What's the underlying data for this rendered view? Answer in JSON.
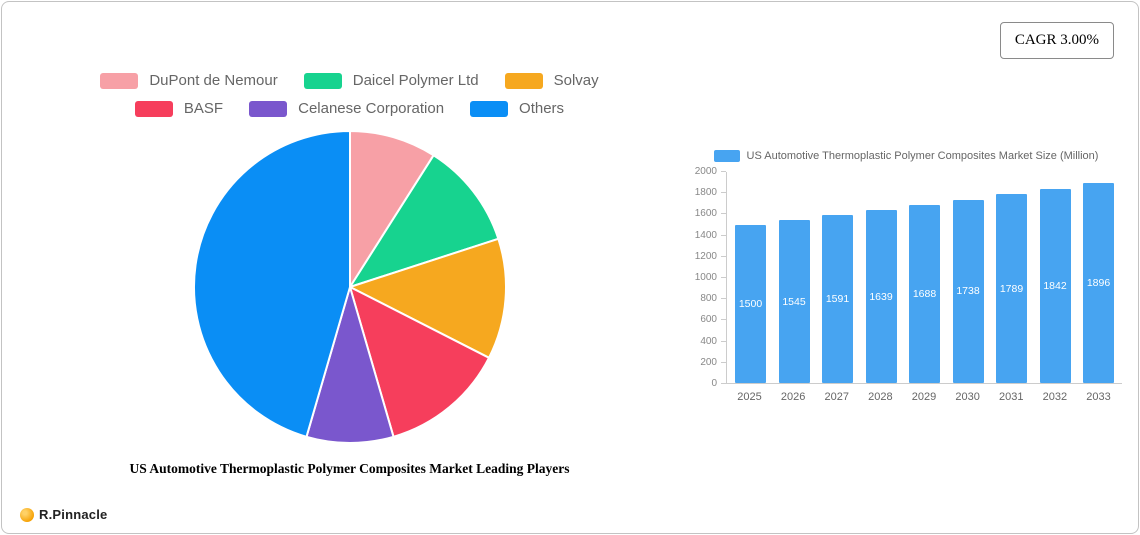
{
  "header": {
    "cagr_label": "CAGR 3.00%"
  },
  "brand": {
    "name": "R.Pinnacle"
  },
  "chart_data": [
    {
      "type": "pie",
      "title": "US Automotive Thermoplastic Polymer Composites Market Leading Players",
      "labels": [
        "DuPont de Nemour",
        "Daicel Polymer Ltd",
        "Solvay",
        "BASF",
        "Celanese Corporation",
        "Others"
      ],
      "values": [
        9,
        11,
        12.5,
        13,
        9,
        45.5
      ],
      "colors": [
        "#f7a0a6",
        "#17d38f",
        "#f6a81f",
        "#f63e5c",
        "#7a57cd",
        "#0a8ef5"
      ],
      "legend_position": "top",
      "start_angle_deg": -90,
      "direction": "clockwise"
    },
    {
      "type": "bar",
      "title": "US Automotive Thermoplastic Polymer Composites Market Size (Million)",
      "categories": [
        "2025",
        "2026",
        "2027",
        "2028",
        "2029",
        "2030",
        "2031",
        "2032",
        "2033"
      ],
      "values": [
        1500,
        1545,
        1591,
        1639,
        1688,
        1738,
        1789,
        1842,
        1896
      ],
      "ylim": [
        0,
        2000
      ],
      "yticks": [
        0,
        200,
        400,
        600,
        800,
        1000,
        1200,
        1400,
        1600,
        1800,
        2000
      ],
      "bar_color": "#47a4f1",
      "value_label_color": "#ffffff",
      "legend_position": "top",
      "grid": false
    }
  ]
}
